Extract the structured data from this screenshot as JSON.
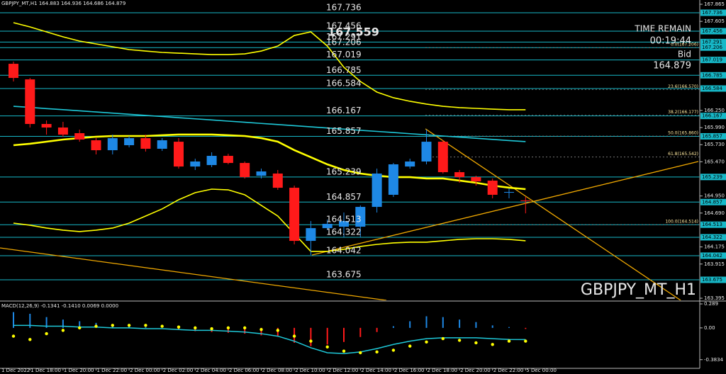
{
  "chart_data": [
    {
      "type": "candlestick",
      "title": "GBPJPY_MT,H1  164.883 164.936 164.686 164.879",
      "watermark": "GBPJPY_MT_H1",
      "time_remain_label": "TIME REMAIN",
      "time_remain": "00:19:44",
      "bid_label": "Bid",
      "bid": 164.879,
      "peak_label": 167.559,
      "ylim": [
        163.363,
        167.93
      ],
      "yticks": [
        163.395,
        163.915,
        164.175,
        {
          "value": 164.69,
          "label": "164.690"
        },
        {
          "value": 164.95,
          "label": "164.950"
        },
        {
          "value": 165.47,
          "label": "165.470"
        },
        {
          "value": 165.73,
          "label": "165.730"
        },
        {
          "value": 165.99,
          "label": "165.990"
        },
        {
          "value": 166.25,
          "label": "166.250"
        },
        167.605,
        167.865
      ],
      "xticks": [
        {
          "value": -1,
          "label": "1 Dec 2022"
        },
        {
          "value": 1,
          "label": "1 Dec 18:00"
        },
        {
          "value": 3,
          "label": "1 Dec 20:00"
        },
        {
          "value": 5,
          "label": "1 Dec 22:00"
        },
        {
          "value": 7,
          "label": "2 Dec 00:00"
        },
        {
          "value": 9,
          "label": "2 Dec 02:00"
        },
        {
          "value": 11,
          "label": "2 Dec 04:00"
        },
        {
          "value": 13,
          "label": "2 Dec 06:00"
        },
        {
          "value": 15,
          "label": "2 Dec 08:00"
        },
        {
          "value": 17,
          "label": "2 Dec 10:00"
        },
        {
          "value": 19,
          "label": "2 Dec 12:00"
        },
        {
          "value": 21,
          "label": "2 Dec 14:00"
        },
        {
          "value": 23,
          "label": "2 Dec 16:00"
        },
        {
          "value": 25,
          "label": "2 Dec 18:00"
        },
        {
          "value": 27,
          "label": "2 Dec 20:00"
        },
        {
          "value": 29,
          "label": "2 Dec 22:00"
        },
        {
          "value": 31,
          "label": "5 Dec 00:00"
        }
      ],
      "open": [
        166.96,
        166.723,
        166.045,
        165.991,
        165.905,
        165.797,
        165.646,
        165.722,
        165.829,
        165.668,
        165.775,
        165.398,
        165.42,
        165.56,
        165.452,
        165.258,
        165.291,
        165.075,
        164.267,
        164.461,
        164.483,
        164.483,
        164.784,
        164.968,
        165.398,
        165.474,
        165.775,
        165.312,
        165.237,
        165.183,
        165.0,
        164.883
      ],
      "high": [
        166.993,
        166.745,
        166.099,
        166.077,
        165.959,
        165.829,
        165.883,
        165.862,
        165.883,
        165.829,
        165.829,
        165.517,
        165.614,
        165.592,
        165.474,
        165.366,
        165.345,
        165.108,
        164.569,
        164.591,
        164.698,
        164.806,
        165.366,
        165.452,
        165.517,
        165.959,
        165.797,
        165.345,
        165.258,
        165.215,
        165.065,
        164.936
      ],
      "low": [
        166.691,
        165.991,
        165.883,
        165.851,
        165.775,
        165.582,
        165.582,
        165.689,
        165.625,
        165.635,
        165.366,
        165.345,
        165.388,
        165.431,
        165.215,
        165.215,
        165.043,
        164.214,
        164.052,
        164.429,
        164.321,
        164.321,
        164.698,
        164.935,
        165.366,
        165.431,
        165.291,
        165.151,
        165.108,
        164.914,
        164.914,
        164.686
      ],
      "close": [
        166.745,
        166.045,
        165.991,
        165.883,
        165.808,
        165.646,
        165.829,
        165.829,
        165.668,
        165.797,
        165.398,
        165.474,
        165.56,
        165.452,
        165.237,
        165.323,
        165.075,
        164.267,
        164.461,
        164.526,
        164.569,
        164.784,
        165.291,
        165.431,
        165.474,
        165.775,
        165.312,
        165.237,
        165.172,
        164.968,
        165.011,
        164.879
      ],
      "up_color": "#1e88e5",
      "down_color": "#ff1a1a",
      "lines": [
        {
          "color": "#ffff00",
          "width": 1.6,
          "values": [
            167.585,
            167.521,
            167.445,
            167.37,
            167.305,
            167.262,
            167.219,
            167.176,
            167.154,
            167.133,
            167.122,
            167.111,
            167.1,
            167.1,
            167.111,
            167.154,
            167.23,
            167.391,
            167.445,
            167.23,
            166.907,
            166.691,
            166.53,
            166.444,
            166.39,
            166.347,
            166.314,
            166.293,
            166.282,
            166.271,
            166.261,
            166.261
          ]
        },
        {
          "color": "#ffff00",
          "width": 2.6,
          "values": [
            165.722,
            165.744,
            165.776,
            165.808,
            165.83,
            165.851,
            165.862,
            165.862,
            165.862,
            165.873,
            165.884,
            165.884,
            165.884,
            165.873,
            165.862,
            165.83,
            165.776,
            165.647,
            165.539,
            165.431,
            165.345,
            165.291,
            165.259,
            165.237,
            165.237,
            165.216,
            165.216,
            165.184,
            165.151,
            165.108,
            165.076,
            165.054
          ]
        },
        {
          "color": "#ffff00",
          "width": 1.6,
          "values": [
            164.537,
            164.505,
            164.462,
            164.43,
            164.408,
            164.43,
            164.462,
            164.537,
            164.645,
            164.753,
            164.893,
            165.0,
            165.054,
            165.043,
            164.968,
            164.807,
            164.645,
            164.376,
            164.107,
            164.107,
            164.139,
            164.182,
            164.214,
            164.236,
            164.247,
            164.247,
            164.268,
            164.29,
            164.3,
            164.3,
            164.29,
            164.268
          ]
        },
        {
          "color": "#1ec8d8",
          "width": 1.6,
          "values": [
            166.314,
            166.297,
            166.279,
            166.262,
            166.245,
            166.227,
            166.21,
            166.192,
            166.175,
            166.158,
            166.14,
            166.123,
            166.106,
            166.088,
            166.071,
            166.053,
            166.036,
            166.019,
            166.001,
            165.984,
            165.967,
            165.949,
            165.932,
            165.915,
            165.897,
            165.88,
            165.862,
            165.845,
            165.828,
            165.81,
            165.793,
            165.776
          ]
        }
      ],
      "levels": [
        167.736,
        167.456,
        167.291,
        167.206,
        167.019,
        166.785,
        166.584,
        166.167,
        165.857,
        165.239,
        164.857,
        164.513,
        164.322,
        164.042,
        163.675
      ],
      "level_color": "#17b8c8",
      "fib_levels": [
        {
          "value": 167.206,
          "label": "0.0(167.206)"
        },
        {
          "value": 166.57,
          "label": "23.6(166.570)"
        },
        {
          "value": 166.177,
          "label": "38.2(166.177)"
        },
        {
          "value": 165.86,
          "label": "50.0(165.860)"
        },
        {
          "value": 165.542,
          "label": "61.8(165.542)"
        },
        {
          "value": 164.514,
          "label": "100.0(164.514)"
        }
      ],
      "trendline_color": "#f0a800",
      "trendlines": [
        {
          "x": [
            -0.815,
            22.575
          ],
          "y": [
            164.16,
            163.363
          ]
        },
        {
          "x": [
            24.94,
            40.39
          ],
          "y": [
            165.97,
            163.363
          ]
        },
        {
          "x": [
            18.07,
            41.46
          ],
          "y": [
            164.052,
            165.474
          ]
        }
      ]
    },
    {
      "type": "bar",
      "title": "MACD(12,26,9) -0.1341 -0.1410 0.0069 0.0000",
      "ylim": [
        -0.488,
        0.315
      ],
      "yticks": [
        0.289,
        {
          "value": 0,
          "label": "0.00"
        },
        -0.3834
      ],
      "values": [
        0.19,
        0.17,
        0.13,
        0.1,
        0.08,
        0.06,
        0.04,
        0.03,
        0.01,
        0.0,
        -0.02,
        -0.04,
        -0.05,
        -0.06,
        -0.07,
        -0.09,
        -0.1,
        -0.18,
        -0.22,
        -0.2,
        -0.17,
        -0.11,
        -0.05,
        0.02,
        0.08,
        0.14,
        0.13,
        0.1,
        0.07,
        0.03,
        0.01,
        -0.013
      ],
      "up_color": "#1e88e5",
      "down_color": "#ff1a1a",
      "line": [
        0.03,
        0.03,
        0.02,
        0.02,
        0.01,
        0.01,
        0.0,
        0.0,
        -0.01,
        -0.01,
        -0.02,
        -0.03,
        -0.03,
        -0.04,
        -0.05,
        -0.07,
        -0.1,
        -0.16,
        -0.24,
        -0.3,
        -0.31,
        -0.29,
        -0.25,
        -0.2,
        -0.16,
        -0.13,
        -0.12,
        -0.12,
        -0.12,
        -0.13,
        -0.14,
        -0.141
      ],
      "line_color": "#1ec8d8",
      "signal": [
        -0.1,
        -0.14,
        -0.07,
        -0.03,
        0.0,
        0.02,
        0.03,
        0.03,
        0.03,
        0.02,
        0.01,
        0.0,
        -0.01,
        0.0,
        0.0,
        -0.02,
        -0.03,
        -0.1,
        -0.16,
        -0.23,
        -0.28,
        -0.3,
        -0.29,
        -0.27,
        -0.22,
        -0.17,
        -0.13,
        -0.15,
        -0.18,
        -0.2,
        -0.16,
        -0.16
      ],
      "signal_color": "#ffff00"
    }
  ]
}
